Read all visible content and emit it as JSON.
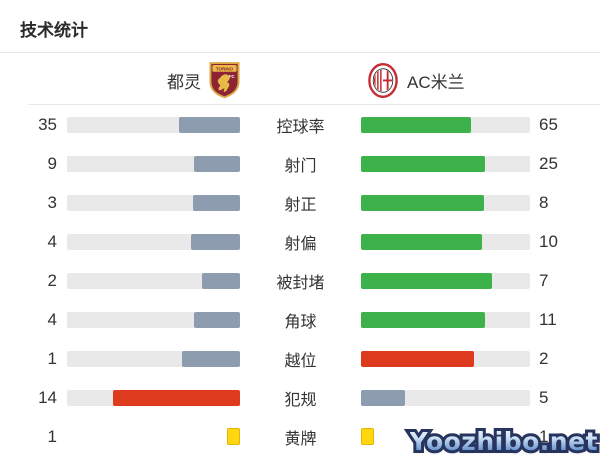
{
  "page": {
    "title": "技术统计",
    "watermark": "Yoozhibo.net"
  },
  "teams": {
    "home": {
      "name": "都灵",
      "crest": "torino-crest",
      "crest_text": "TORINO"
    },
    "away": {
      "name": "AC米兰",
      "crest": "ac-milan-crest"
    }
  },
  "colors": {
    "gray": "#8d9cae",
    "green": "#3db24b",
    "red": "#dd3a1e",
    "yellow": "#ffd60f",
    "track": "#e9e9e9",
    "divider": "#e9e9e9",
    "text": "#333333"
  },
  "chart_data": {
    "type": "bar",
    "title": "技术统计",
    "orientation": "horizontal-paired",
    "teams": [
      "都灵",
      "AC米兰"
    ],
    "note": "bar fill fraction = value / (home + away)",
    "rows": [
      {
        "label": "控球率",
        "home": 35,
        "away": 65,
        "home_color": "gray",
        "away_color": "green",
        "display": "bar"
      },
      {
        "label": "射门",
        "home": 9,
        "away": 25,
        "home_color": "gray",
        "away_color": "green",
        "display": "bar"
      },
      {
        "label": "射正",
        "home": 3,
        "away": 8,
        "home_color": "gray",
        "away_color": "green",
        "display": "bar"
      },
      {
        "label": "射偏",
        "home": 4,
        "away": 10,
        "home_color": "gray",
        "away_color": "green",
        "display": "bar"
      },
      {
        "label": "被封堵",
        "home": 2,
        "away": 7,
        "home_color": "gray",
        "away_color": "green",
        "display": "bar"
      },
      {
        "label": "角球",
        "home": 4,
        "away": 11,
        "home_color": "gray",
        "away_color": "green",
        "display": "bar"
      },
      {
        "label": "越位",
        "home": 1,
        "away": 2,
        "home_color": "gray",
        "away_color": "red",
        "display": "bar"
      },
      {
        "label": "犯规",
        "home": 14,
        "away": 5,
        "home_color": "red",
        "away_color": "gray",
        "display": "bar"
      },
      {
        "label": "黄牌",
        "home": 1,
        "away": 1,
        "home_color": "yellow",
        "away_color": "yellow",
        "display": "card"
      }
    ]
  }
}
